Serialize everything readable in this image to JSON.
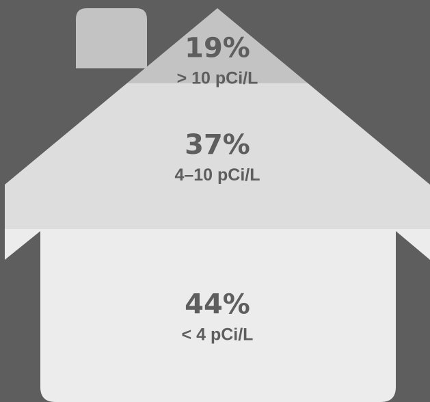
{
  "chart_data": {
    "type": "bar",
    "categories": [
      "> 10 pCi/L",
      "4–10 pCi/L",
      "< 4 pCi/L"
    ],
    "values": [
      19,
      37,
      44
    ],
    "labels": [
      "19%",
      "37%",
      "44%"
    ],
    "unit": "%"
  },
  "colors": {
    "background": "#5e5e5e",
    "top_band": "#c3c3c3",
    "middle_band": "#dddddd",
    "bottom_band": "#ececec",
    "text": "#5e5e5e"
  }
}
